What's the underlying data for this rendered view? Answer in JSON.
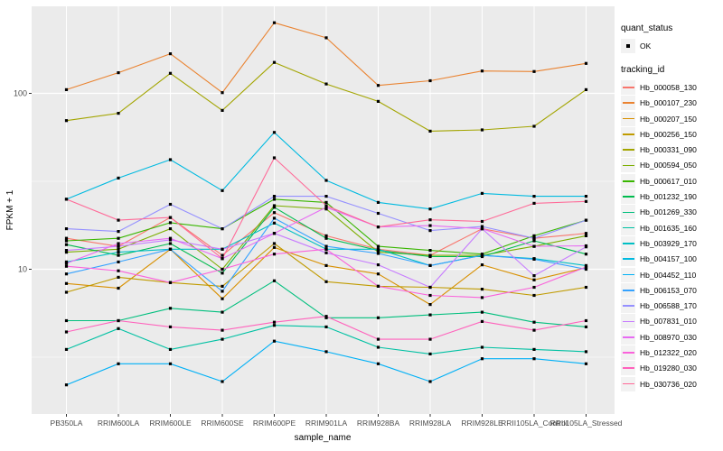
{
  "chart_data": {
    "type": "line",
    "title": "",
    "xlabel": "sample_name",
    "ylabel": "FPKM + 1",
    "y_scale": "log10",
    "y_ticks": [
      10,
      100
    ],
    "y_minor_ticks": [
      3.1623,
      31.623
    ],
    "ylim": [
      1.55,
      310
    ],
    "panel_bg": "#EBEBEB",
    "grid_color": "#FFFFFF",
    "tick_color": "#333333",
    "tick_label_color": "#4D4D4D",
    "marker_color": "#000000",
    "categories": [
      "PB350LA",
      "RRIM600LA",
      "RRIM600LE",
      "RRIM600SE",
      "RRIM600PE",
      "RRIM901LA",
      "RRIM928BA",
      "RRIM928LA",
      "RRIM928LE",
      "RRII105LA_Control",
      "RRII105LA_Stressed"
    ],
    "series": [
      {
        "name": "Hb_000058_130",
        "color": "#F8766D",
        "values": [
          15,
          13.5,
          19.7,
          12,
          21,
          15.5,
          13,
          12,
          17,
          15,
          16
        ]
      },
      {
        "name": "Hb_000107_230",
        "color": "#EA8331",
        "values": [
          105,
          131,
          168,
          101,
          252,
          207,
          111,
          118,
          134,
          133,
          148
        ]
      },
      {
        "name": "Hb_000207_150",
        "color": "#D89000",
        "values": [
          8.3,
          7.8,
          13,
          6.8,
          13.3,
          10.5,
          9.4,
          6.3,
          10.6,
          8.7,
          10.2
        ]
      },
      {
        "name": "Hb_000256_150",
        "color": "#C09B00",
        "values": [
          7.4,
          9,
          8.4,
          8,
          14,
          8.5,
          8,
          7.9,
          7.7,
          7.1,
          7.9
        ]
      },
      {
        "name": "Hb_000331_090",
        "color": "#A3A500",
        "values": [
          70,
          77,
          130,
          80,
          150,
          113,
          90,
          61,
          62,
          65,
          105
        ]
      },
      {
        "name": "Hb_000594_050",
        "color": "#7CAE00",
        "values": [
          12.5,
          13,
          17,
          10,
          23,
          22,
          12.5,
          12,
          12,
          13.5,
          15.5
        ]
      },
      {
        "name": "Hb_000617_010",
        "color": "#39B600",
        "values": [
          14.5,
          15,
          18.4,
          17,
          25,
          24,
          13.5,
          12.8,
          12.2,
          15.5,
          19
        ]
      },
      {
        "name": "Hb_001232_190",
        "color": "#00BB4E",
        "values": [
          13.8,
          12,
          14,
          9.5,
          22.5,
          15,
          12.8,
          11.8,
          11.8,
          14.5,
          12.2
        ]
      },
      {
        "name": "Hb_001269_330",
        "color": "#00BF7D",
        "values": [
          5.1,
          5.1,
          6,
          5.7,
          8.6,
          5.3,
          5.3,
          5.5,
          5.7,
          5,
          4.7
        ]
      },
      {
        "name": "Hb_001635_160",
        "color": "#00C1A3",
        "values": [
          3.5,
          4.6,
          3.5,
          4,
          4.8,
          4.7,
          3.6,
          3.3,
          3.6,
          3.5,
          3.4
        ]
      },
      {
        "name": "Hb_003929_170",
        "color": "#00BFC4",
        "values": [
          11,
          12.5,
          13,
          13,
          18.3,
          13,
          13,
          10.5,
          12,
          11.5,
          10.5
        ]
      },
      {
        "name": "Hb_004157_100",
        "color": "#00BAE0",
        "values": [
          25,
          33,
          42,
          28,
          60,
          32,
          24,
          22,
          27,
          26,
          26
        ]
      },
      {
        "name": "Hb_004452_110",
        "color": "#00B0F6",
        "values": [
          2.2,
          2.9,
          2.9,
          2.3,
          3.9,
          3.4,
          2.9,
          2.3,
          3.1,
          3.1,
          2.9
        ]
      },
      {
        "name": "Hb_006153_070",
        "color": "#35A2FF",
        "values": [
          9.4,
          11,
          13,
          7.5,
          19.5,
          13.5,
          12.3,
          10.5,
          12,
          11.4,
          10
        ]
      },
      {
        "name": "Hb_006588_170",
        "color": "#9590FF",
        "values": [
          17,
          16.4,
          23.4,
          17,
          26,
          26,
          20.8,
          16.6,
          17.5,
          15,
          19
        ]
      },
      {
        "name": "Hb_007831_010",
        "color": "#C77CFF",
        "values": [
          12.8,
          13.5,
          14.7,
          13,
          16,
          12.4,
          10.6,
          7.9,
          17,
          9.2,
          13.4
        ]
      },
      {
        "name": "Hb_008970_030",
        "color": "#E76BF3",
        "values": [
          10.8,
          14,
          15,
          11.5,
          16,
          22.5,
          17.4,
          17.7,
          17,
          13.5,
          13.6
        ]
      },
      {
        "name": "Hb_012322_020",
        "color": "#FA62DB",
        "values": [
          10.4,
          9.8,
          8.4,
          10,
          12.2,
          13,
          8,
          7.1,
          6.9,
          7.9,
          10.3
        ]
      },
      {
        "name": "Hb_019280_030",
        "color": "#FF62BC",
        "values": [
          4.4,
          5.1,
          4.7,
          4.5,
          5,
          5.4,
          4,
          4,
          5.05,
          4.5,
          5.1
        ]
      },
      {
        "name": "Hb_030736_020",
        "color": "#FF6A98",
        "values": [
          25,
          19,
          19.7,
          11.5,
          43,
          23,
          17.4,
          19.1,
          18.7,
          23.7,
          24.3
        ]
      }
    ],
    "legend": {
      "position": "right",
      "key_bg": "#F2F2F2",
      "quant_status_title": "quant_status",
      "quant_status_items": [
        {
          "label": "OK",
          "marker": "point"
        }
      ],
      "tracking_id_title": "tracking_id"
    }
  }
}
